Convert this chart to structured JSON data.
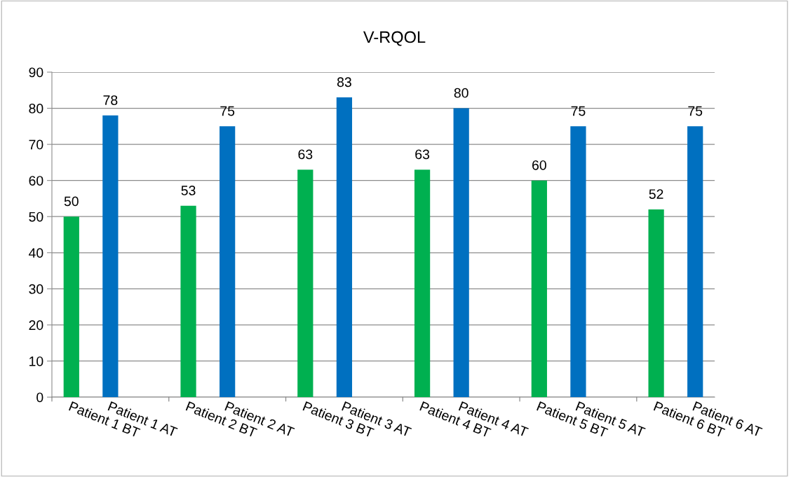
{
  "chart_data": {
    "type": "bar",
    "title": "V-RQOL",
    "categories": [
      "Patient 1 BT",
      "Patient 1 AT",
      null,
      "Patient 2 BT",
      "Patient 2 AT",
      null,
      "Patient 3 BT",
      "Patient 3 AT",
      null,
      "Patient 4 BT",
      "Patient 4 AT",
      null,
      "Patient 5 BT",
      "Patient 5 AT",
      null,
      "Patient 6 BT",
      "Patient 6 AT"
    ],
    "values": [
      50,
      78,
      null,
      53,
      75,
      null,
      63,
      83,
      null,
      63,
      80,
      null,
      60,
      75,
      null,
      52,
      75
    ],
    "colors": [
      "#00b050",
      "#0070c0",
      null,
      "#00b050",
      "#0070c0",
      null,
      "#00b050",
      "#0070c0",
      null,
      "#00b050",
      "#0070c0",
      null,
      "#00b050",
      "#0070c0",
      null,
      "#00b050",
      "#0070c0"
    ],
    "ylim": [
      0,
      90
    ],
    "yticks": [
      0,
      10,
      20,
      30,
      40,
      50,
      60,
      70,
      80,
      90
    ],
    "grid": "y",
    "data_labels": true,
    "legend": false
  }
}
